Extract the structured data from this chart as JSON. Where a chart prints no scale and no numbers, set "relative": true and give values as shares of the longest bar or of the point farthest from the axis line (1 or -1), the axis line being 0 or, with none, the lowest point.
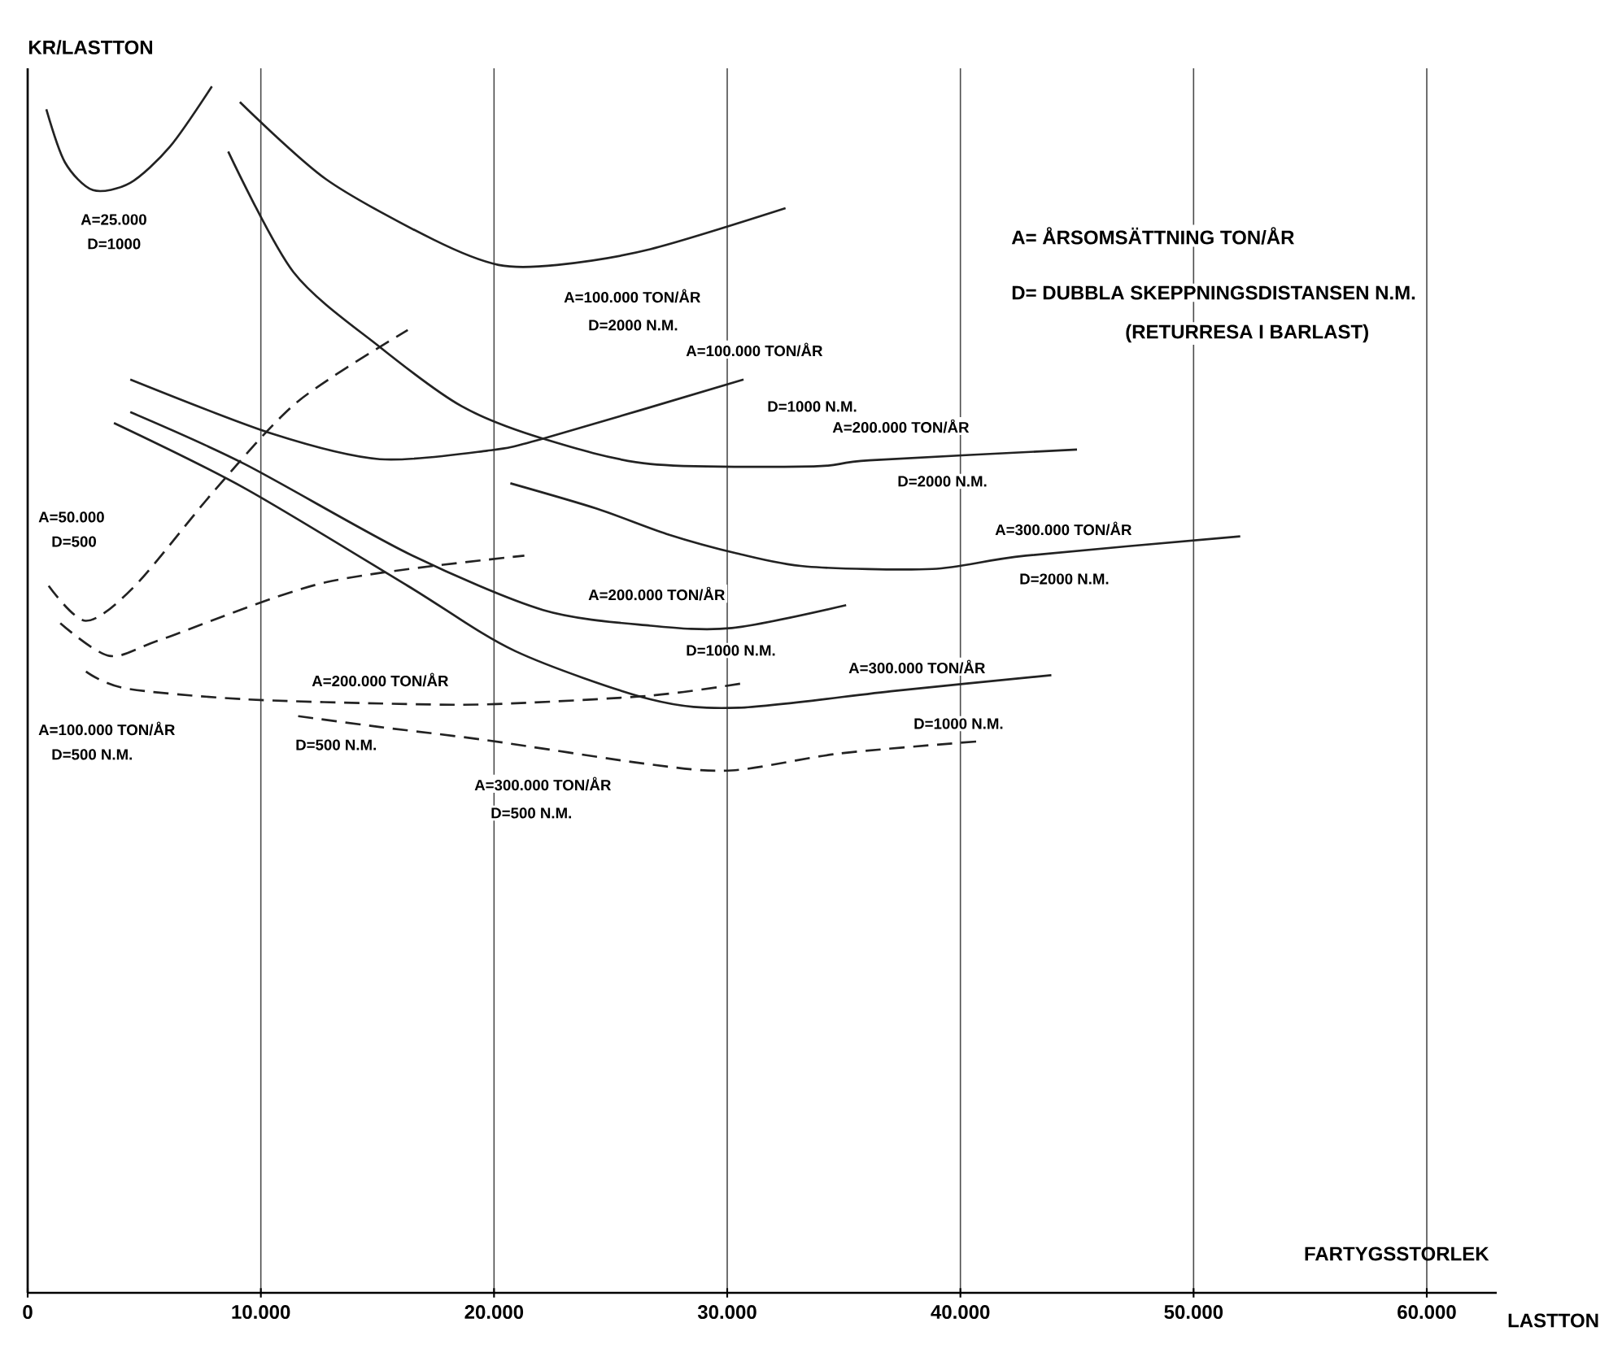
{
  "chart_data": {
    "type": "line",
    "relative": true,
    "ylabel": "KR/LASTTON",
    "xlabel": "FARTYGSSTORLEK",
    "xlim": [
      0,
      63000
    ],
    "xticks": [
      0,
      {
        "value": 10000,
        "label": "10.000"
      },
      {
        "value": 20000,
        "label": "20.000"
      },
      {
        "value": 30000,
        "label": "30.000"
      },
      {
        "value": 40000,
        "label": "40.000"
      },
      {
        "value": 50000,
        "label": "50.000"
      },
      {
        "value": 60000,
        "label": "60.000"
      }
    ],
    "grid": "x",
    "series": [
      {
        "color": "#222222",
        "line_style": "solid",
        "x": [
          800,
          1600,
          2800,
          4400,
          6100,
          7900
        ],
        "values": [
          0.981,
          0.937,
          0.914,
          0.92,
          0.95,
          1.0
        ]
      },
      {
        "color": "#222222",
        "line_style": "solid",
        "x": [
          9100,
          12800,
          17400,
          20200,
          22700,
          26700,
          32500
        ],
        "values": [
          0.987,
          0.923,
          0.873,
          0.852,
          0.852,
          0.865,
          0.899
        ]
      },
      {
        "color": "#222222",
        "line_style": "solid",
        "x": [
          4400,
          10500,
          15100,
          19700,
          22100,
          30700
        ],
        "values": [
          0.757,
          0.712,
          0.691,
          0.698,
          0.708,
          0.757
        ]
      },
      {
        "color": "#222222",
        "line_style": "solid",
        "x": [
          8600,
          11400,
          15100,
          18600,
          22100,
          26700,
          33700,
          36100,
          45000
        ],
        "values": [
          0.946,
          0.846,
          0.784,
          0.735,
          0.708,
          0.687,
          0.685,
          0.69,
          0.699
        ]
      },
      {
        "color": "#222222",
        "line_style": "solid",
        "x": [
          20700,
          24400,
          27400,
          30400,
          33400,
          38800,
          42800,
          52000
        ],
        "values": [
          0.671,
          0.65,
          0.629,
          0.613,
          0.602,
          0.6,
          0.611,
          0.627
        ]
      },
      {
        "color": "#222222",
        "line_style": "dashed",
        "x": [
          900,
          2500,
          4600,
          8100,
          11600,
          16300
        ],
        "values": [
          0.586,
          0.557,
          0.586,
          0.667,
          0.739,
          0.798
        ]
      },
      {
        "color": "#222222",
        "line_style": "dashed",
        "x": [
          1400,
          3500,
          5800,
          12800,
          21300
        ],
        "values": [
          0.555,
          0.528,
          0.542,
          0.589,
          0.611
        ]
      },
      {
        "color": "#222222",
        "line_style": "dashed",
        "x": [
          2500,
          4200,
          9300,
          16300,
          20100,
          26700,
          30600
        ],
        "values": [
          0.515,
          0.501,
          0.492,
          0.488,
          0.488,
          0.495,
          0.505
        ]
      },
      {
        "color": "#222222",
        "line_style": "dashed",
        "x": [
          11600,
          15100,
          19700,
          26700,
          30200,
          34800,
          40700
        ],
        "values": [
          0.478,
          0.469,
          0.458,
          0.438,
          0.433,
          0.447,
          0.457
        ]
      },
      {
        "color": "#222222",
        "line_style": "solid",
        "x": [
          4400,
          9300,
          16300,
          22100,
          26700,
          30200,
          35100
        ],
        "values": [
          0.73,
          0.687,
          0.613,
          0.566,
          0.553,
          0.551,
          0.57
        ]
      },
      {
        "color": "#222222",
        "line_style": "solid",
        "x": [
          3700,
          9300,
          16300,
          20900,
          26700,
          30500,
          37200,
          43900
        ],
        "values": [
          0.721,
          0.667,
          0.586,
          0.532,
          0.492,
          0.485,
          0.499,
          0.512
        ]
      }
    ],
    "annotations": [
      "A=25.000",
      "D=1000",
      "A=100.000 TON/ÅR",
      "D=2000 N.M.",
      "A=100.000 TON/ÅR",
      "D=1000 N.M.",
      "A=200.000 TON/ÅR",
      "D=2000 N.M.",
      "A=300.000 TON/ÅR",
      "D=2000 N.M.",
      "A=50.000",
      "D=500",
      "A=100.000 TON/ÅR",
      "D=500 N.M.",
      "A=200.000 TON/ÅR",
      "D=500 N.M.",
      "A=300.000 TON/ÅR",
      "D=500 N.M.",
      "A=200.000 TON/ÅR",
      "D=1000 N.M.",
      "A=300.000 TON/ÅR",
      "D=1000 N.M.",
      "A= ÅRSOMSÄTTNING TON/ÅR",
      "D= DUBBLA SKEPPNINGSDISTANSEN N.M.",
      "(RETURRESA I BARLAST)",
      "LASTTON"
    ]
  }
}
